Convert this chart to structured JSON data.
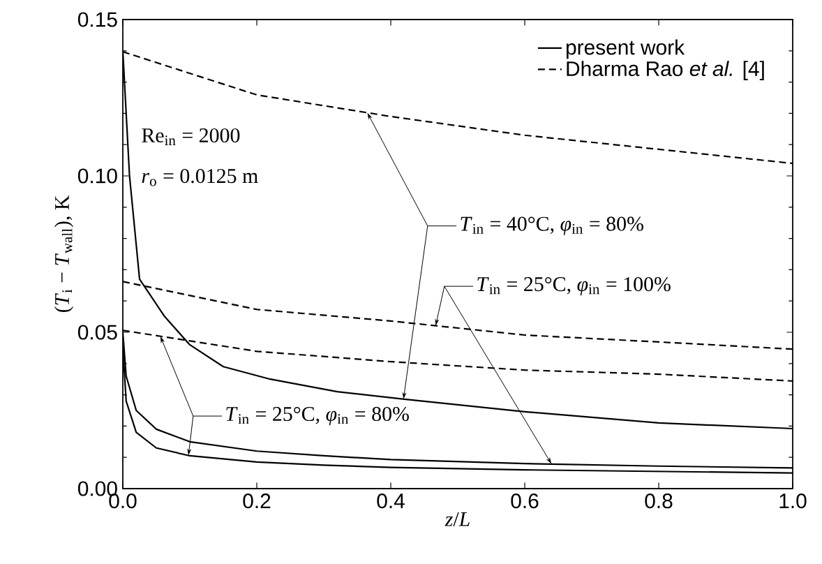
{
  "chart_data": {
    "type": "line",
    "xlabel": "*z*/*L*",
    "ylabel": "(*T*$_{i}$ − *T*$_{wall}$), K",
    "xlim": [
      0,
      1
    ],
    "ylim": [
      0,
      0.15
    ],
    "xticks": [
      {
        "value": 0,
        "label": "0.0"
      },
      {
        "value": 0.2,
        "label": "0.2"
      },
      {
        "value": 0.4,
        "label": "0.4"
      },
      {
        "value": 0.6,
        "label": "0.6"
      },
      {
        "value": 0.8,
        "label": "0.8"
      },
      {
        "value": 1,
        "label": "1.0"
      }
    ],
    "yticks": [
      {
        "value": 0,
        "label": "0.00"
      },
      {
        "value": 0.05,
        "label": "0.05"
      },
      {
        "value": 0.1,
        "label": "0.10"
      },
      {
        "value": 0.15,
        "label": "0.15"
      }
    ],
    "grid": false,
    "legend": "top right",
    "marker": "none",
    "series": [
      {
        "name": "present work",
        "color": "#000000",
        "line_style": "solid",
        "x": [
          0,
          0.005,
          0.01,
          0.025,
          0.0625,
          0.1,
          0.15,
          0.22,
          0.32,
          0.42,
          0.6,
          0.8,
          1.0
        ],
        "values": [
          0.14,
          0.12,
          0.1,
          0.067,
          0.055,
          0.046,
          0.039,
          0.035,
          0.031,
          0.0286,
          0.0246,
          0.021,
          0.0192
        ]
      },
      {
        "color": "#000000",
        "line_style": "solid",
        "x": [
          0,
          0.005,
          0.02,
          0.05,
          0.1,
          0.2,
          0.3,
          0.4,
          0.6,
          0.8,
          1.0
        ],
        "values": [
          0.05,
          0.036,
          0.025,
          0.019,
          0.015,
          0.012,
          0.0105,
          0.0093,
          0.008,
          0.0072,
          0.0066
        ]
      },
      {
        "color": "#000000",
        "line_style": "solid",
        "x": [
          0,
          0.005,
          0.02,
          0.05,
          0.1,
          0.2,
          0.3,
          0.4,
          0.6,
          0.8,
          1.0
        ],
        "values": [
          0.045,
          0.028,
          0.018,
          0.013,
          0.0105,
          0.0085,
          0.0075,
          0.0068,
          0.006,
          0.0055,
          0.005
        ]
      },
      {
        "name": "Dharma Rao *et al.* [4]",
        "color": "#000000",
        "line_style": "dashed",
        "x": [
          0,
          0.2,
          0.4,
          0.6,
          0.8,
          1.0
        ],
        "values": [
          0.1397,
          0.1259,
          0.119,
          0.113,
          0.1085,
          0.104
        ]
      },
      {
        "color": "#000000",
        "line_style": "dashed",
        "x": [
          0,
          0.2,
          0.4,
          0.6,
          0.8,
          1.0
        ],
        "values": [
          0.0662,
          0.0573,
          0.0536,
          0.0491,
          0.0469,
          0.0446
        ]
      },
      {
        "color": "#000000",
        "line_style": "dashed",
        "x": [
          0,
          0.2,
          0.4,
          0.6,
          0.8,
          1.0
        ],
        "values": [
          0.0506,
          0.0439,
          0.0406,
          0.0379,
          0.0366,
          0.0344
        ]
      }
    ],
    "annotations": [
      "Re$_{in}$ = 2000",
      "*r*$_{o}$ = 0.0125 m",
      "*T*$_{in}$ = 40°C, *φ*$_{in}$ = 80%",
      "*T*$_{in}$ = 25°C, *φ*$_{in}$ = 100%",
      "*T*$_{in}$ = 25°C, *φ*$_{in}$ = 80%"
    ]
  }
}
